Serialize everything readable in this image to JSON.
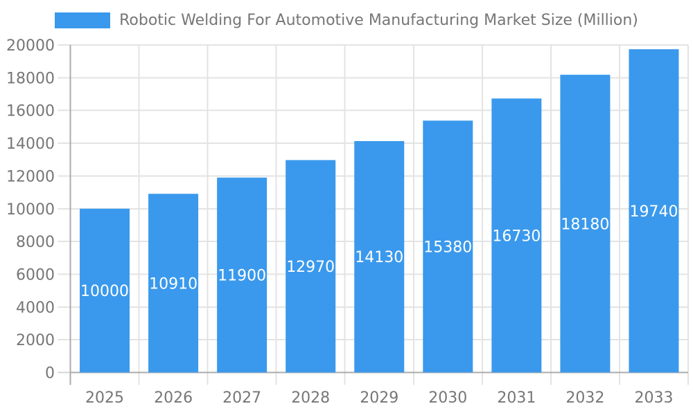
{
  "chart_data": {
    "type": "bar",
    "title": "Robotic Welding For Automotive Manufacturing Market Size (Million)",
    "categories": [
      "2025",
      "2026",
      "2027",
      "2028",
      "2029",
      "2030",
      "2031",
      "2032",
      "2033"
    ],
    "series": [
      {
        "name": "Robotic Welding For Automotive Manufacturing Market Size (Million)",
        "values": [
          10000,
          10910,
          11900,
          12970,
          14130,
          15380,
          16730,
          18180,
          19740
        ]
      }
    ],
    "xlabel": "",
    "ylabel": "",
    "ylim": [
      0,
      20000
    ],
    "ytick_step": 2000,
    "y_tick_labels": [
      "0",
      "2000",
      "4000",
      "6000",
      "8000",
      "10000",
      "12000",
      "14000",
      "16000",
      "18000",
      "20000"
    ],
    "grid": true,
    "legend_position": "top",
    "value_labels": "inside-center",
    "colors": {
      "bar": "#3a99ec",
      "bar_value_text": "#ffffff",
      "axis_line": "#ababab",
      "grid_line": "#e3e3e3",
      "tick_mark": "#d4d4d4",
      "tick_text": "#767676",
      "title_text": "#767676",
      "background": "#ffffff"
    }
  }
}
